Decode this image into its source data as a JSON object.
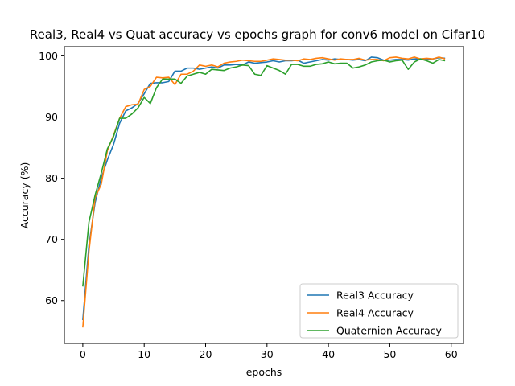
{
  "chart_data": {
    "type": "line",
    "title": "Real3, Real4 vs Quat accuracy vs epochs graph for conv6 model on Cifar10",
    "xlabel": "epochs",
    "ylabel": "Accuracy (%)",
    "xlim": [
      -3,
      62
    ],
    "ylim": [
      53,
      101.5
    ],
    "xticks": [
      0,
      10,
      20,
      30,
      40,
      50,
      60
    ],
    "yticks": [
      60,
      70,
      80,
      90,
      100
    ],
    "grid": false,
    "legend_position": "lower-right",
    "x": [
      0,
      1,
      2,
      3,
      4,
      5,
      6,
      7,
      8,
      9,
      10,
      11,
      12,
      13,
      14,
      15,
      16,
      17,
      18,
      19,
      20,
      21,
      22,
      23,
      24,
      25,
      26,
      27,
      28,
      29,
      30,
      31,
      32,
      33,
      34,
      35,
      36,
      37,
      38,
      39,
      40,
      41,
      42,
      43,
      44,
      45,
      46,
      47,
      48,
      49,
      50,
      51,
      52,
      53,
      54,
      55,
      56,
      57,
      58,
      59
    ],
    "series": [
      {
        "name": "Real3 Accuracy",
        "color": "#1f77b4",
        "values": [
          56.8,
          69.0,
          76.0,
          80.0,
          83.0,
          85.5,
          89.0,
          91.0,
          91.5,
          92.2,
          93.8,
          95.5,
          95.6,
          95.6,
          95.8,
          97.5,
          97.5,
          98.0,
          98.0,
          97.8,
          98.0,
          98.2,
          98.0,
          98.5,
          98.5,
          98.6,
          98.5,
          99.0,
          98.8,
          98.9,
          99.0,
          99.2,
          99.0,
          99.2,
          99.2,
          99.3,
          98.8,
          99.0,
          99.2,
          99.4,
          99.3,
          99.5,
          99.4,
          99.4,
          99.3,
          99.4,
          99.2,
          99.8,
          99.7,
          99.3,
          99.3,
          99.4,
          99.4,
          99.3,
          99.5,
          99.5,
          99.4,
          99.5,
          99.7,
          99.6
        ]
      },
      {
        "name": "Real4 Accuracy",
        "color": "#ff7f0e",
        "values": [
          55.6,
          68.0,
          76.8,
          79.0,
          84.5,
          87.0,
          89.8,
          91.7,
          92.0,
          92.1,
          94.5,
          95.0,
          96.5,
          96.4,
          96.5,
          95.3,
          97.0,
          97.0,
          97.5,
          98.5,
          98.3,
          98.5,
          98.2,
          98.8,
          99.0,
          99.1,
          99.3,
          99.2,
          99.1,
          99.1,
          99.3,
          99.5,
          99.4,
          99.3,
          99.3,
          99.2,
          99.5,
          99.4,
          99.6,
          99.7,
          99.5,
          99.3,
          99.5,
          99.4,
          99.4,
          99.6,
          99.3,
          99.4,
          99.4,
          99.2,
          99.7,
          99.8,
          99.6,
          99.5,
          99.8,
          99.5,
          99.6,
          99.5,
          99.8,
          99.5
        ]
      },
      {
        "name": "Quaternion Accuracy",
        "color": "#2ca02c",
        "values": [
          62.3,
          72.8,
          77.2,
          80.8,
          84.8,
          86.8,
          89.8,
          89.8,
          90.5,
          91.5,
          93.2,
          92.2,
          94.8,
          96.2,
          96.2,
          96.2,
          95.5,
          96.7,
          97.0,
          97.3,
          97.0,
          97.8,
          97.7,
          97.6,
          98.0,
          98.2,
          98.5,
          98.4,
          97.0,
          96.8,
          98.4,
          98.0,
          97.6,
          97.0,
          98.6,
          98.6,
          98.3,
          98.3,
          98.6,
          98.7,
          99.0,
          98.7,
          98.8,
          98.8,
          98.0,
          98.2,
          98.5,
          99.0,
          99.2,
          99.3,
          99.0,
          99.2,
          99.3,
          97.8,
          99.0,
          99.5,
          99.2,
          98.8,
          99.4,
          99.2
        ]
      }
    ]
  }
}
